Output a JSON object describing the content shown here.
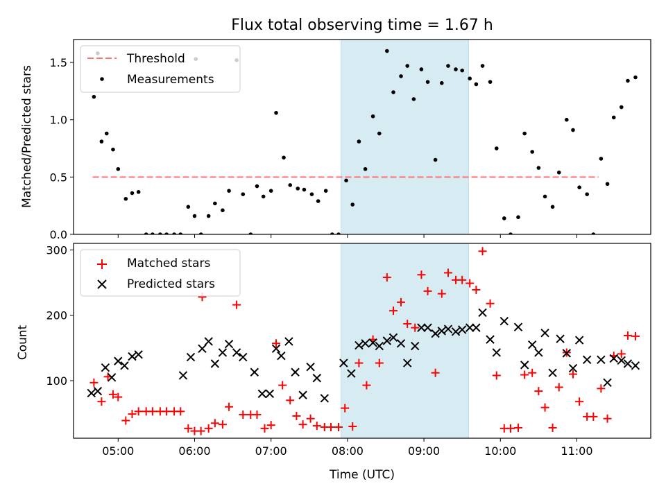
{
  "chart_data": [
    {
      "type": "scatter",
      "title": "Flux total observing time = 1.67 h",
      "xlabel": "",
      "ylabel": "Matched/Predicted stars",
      "xlim": [
        "04:25",
        "11:58"
      ],
      "ylim": [
        0,
        1.7
      ],
      "yticks": [
        0.0,
        0.5,
        1.0,
        1.5
      ],
      "ytick_labels": [
        "0.0",
        "0.5",
        "1.0",
        "1.5"
      ],
      "xticks": [
        "05:00",
        "06:00",
        "07:00",
        "08:00",
        "09:00",
        "10:00",
        "11:00"
      ],
      "xtick_labels": [],
      "shaded_span": {
        "start": "07:55",
        "end": "09:35",
        "color": "#add8e6",
        "opacity": 0.5
      },
      "legend_position": "top-left",
      "threshold": {
        "name": "Threshold",
        "value": 0.5,
        "x_start": "04:40",
        "x_end": "11:17",
        "color": "#ff7070",
        "style": "dashed"
      },
      "series": [
        {
          "name": "Measurements",
          "color": "#000000",
          "marker": "dot",
          "points": [
            [
              "04:41",
              1.2
            ],
            [
              "04:44",
              1.58
            ],
            [
              "04:47",
              0.81
            ],
            [
              "04:51",
              0.88
            ],
            [
              "04:56",
              0.74
            ],
            [
              "05:00",
              0.57
            ],
            [
              "05:06",
              0.31
            ],
            [
              "05:11",
              0.36
            ],
            [
              "05:16",
              0.37
            ],
            [
              "05:22",
              0.0
            ],
            [
              "05:27",
              0.0
            ],
            [
              "05:33",
              0.0
            ],
            [
              "05:38",
              0.0
            ],
            [
              "05:44",
              0.0
            ],
            [
              "05:49",
              0.0
            ],
            [
              "05:55",
              0.24
            ],
            [
              "06:00",
              0.16
            ],
            [
              "06:05",
              0.0
            ],
            [
              "06:01",
              1.53
            ],
            [
              "06:11",
              0.16
            ],
            [
              "06:16",
              0.27
            ],
            [
              "06:22",
              0.21
            ],
            [
              "06:27",
              0.38
            ],
            [
              "06:33",
              1.52
            ],
            [
              "06:38",
              0.35
            ],
            [
              "06:44",
              0.0
            ],
            [
              "06:49",
              0.42
            ],
            [
              "06:54",
              0.33
            ],
            [
              "07:00",
              0.38
            ],
            [
              "07:04",
              1.06
            ],
            [
              "07:10",
              0.67
            ],
            [
              "07:15",
              0.43
            ],
            [
              "07:21",
              0.4
            ],
            [
              "07:26",
              0.39
            ],
            [
              "07:32",
              0.35
            ],
            [
              "07:37",
              0.29
            ],
            [
              "07:43",
              0.38
            ],
            [
              "07:48",
              0.0
            ],
            [
              "07:53",
              0.0
            ],
            [
              "07:59",
              0.47
            ],
            [
              "08:04",
              0.26
            ],
            [
              "08:09",
              0.81
            ],
            [
              "08:14",
              0.57
            ],
            [
              "08:20",
              1.03
            ],
            [
              "08:25",
              0.88
            ],
            [
              "08:31",
              1.6
            ],
            [
              "08:36",
              1.24
            ],
            [
              "08:42",
              1.38
            ],
            [
              "08:47",
              1.47
            ],
            [
              "08:52",
              1.18
            ],
            [
              "08:58",
              1.44
            ],
            [
              "09:03",
              1.33
            ],
            [
              "09:09",
              0.65
            ],
            [
              "09:14",
              1.32
            ],
            [
              "09:19",
              1.47
            ],
            [
              "09:25",
              1.44
            ],
            [
              "09:30",
              1.43
            ],
            [
              "09:36",
              1.36
            ],
            [
              "09:41",
              1.31
            ],
            [
              "09:46",
              1.47
            ],
            [
              "09:52",
              1.33
            ],
            [
              "09:57",
              0.75
            ],
            [
              "10:03",
              0.14
            ],
            [
              "10:08",
              0.0
            ],
            [
              "10:14",
              0.15
            ],
            [
              "10:19",
              0.88
            ],
            [
              "10:25",
              0.72
            ],
            [
              "10:30",
              0.58
            ],
            [
              "10:35",
              0.33
            ],
            [
              "10:41",
              0.24
            ],
            [
              "10:46",
              0.54
            ],
            [
              "10:52",
              1.0
            ],
            [
              "10:57",
              0.91
            ],
            [
              "11:02",
              0.41
            ],
            [
              "11:08",
              0.35
            ],
            [
              "11:13",
              0.0
            ],
            [
              "11:19",
              0.66
            ],
            [
              "11:24",
              0.44
            ],
            [
              "11:29",
              1.02
            ],
            [
              "11:35",
              1.11
            ],
            [
              "11:40",
              1.34
            ],
            [
              "11:46",
              1.37
            ]
          ]
        }
      ]
    },
    {
      "type": "scatter",
      "title": "",
      "xlabel": "Time (UTC)",
      "ylabel": "Count",
      "xlim": [
        "04:25",
        "11:58"
      ],
      "ylim": [
        12,
        310
      ],
      "yticks": [
        100,
        200,
        300
      ],
      "ytick_labels": [
        "100",
        "200",
        "300"
      ],
      "xticks": [
        "05:00",
        "06:00",
        "07:00",
        "08:00",
        "09:00",
        "10:00",
        "11:00"
      ],
      "xtick_labels": [
        "05:00",
        "06:00",
        "07:00",
        "08:00",
        "09:00",
        "10:00",
        "11:00"
      ],
      "shaded_span": {
        "start": "07:55",
        "end": "09:35",
        "color": "#add8e6",
        "opacity": 0.5
      },
      "legend_position": "top-left",
      "series": [
        {
          "name": "Matched stars",
          "color": "#ff0000",
          "marker": "plus",
          "points": [
            [
              "04:41",
              97
            ],
            [
              "04:47",
              68
            ],
            [
              "04:52",
              106
            ],
            [
              "04:56",
              79
            ],
            [
              "05:00",
              75
            ],
            [
              "05:06",
              39
            ],
            [
              "05:11",
              49
            ],
            [
              "05:16",
              53
            ],
            [
              "05:22",
              53
            ],
            [
              "05:27",
              53
            ],
            [
              "05:33",
              53
            ],
            [
              "05:38",
              53
            ],
            [
              "05:44",
              53
            ],
            [
              "05:49",
              53
            ],
            [
              "05:55",
              27
            ],
            [
              "06:00",
              23
            ],
            [
              "06:05",
              23
            ],
            [
              "06:06",
              228
            ],
            [
              "06:11",
              27
            ],
            [
              "06:16",
              35
            ],
            [
              "06:22",
              33
            ],
            [
              "06:27",
              60
            ],
            [
              "06:33",
              216
            ],
            [
              "06:38",
              48
            ],
            [
              "06:44",
              48
            ],
            [
              "06:49",
              48
            ],
            [
              "06:55",
              27
            ],
            [
              "07:00",
              32
            ],
            [
              "07:04",
              157
            ],
            [
              "07:09",
              93
            ],
            [
              "07:15",
              70
            ],
            [
              "07:20",
              46
            ],
            [
              "07:25",
              33
            ],
            [
              "07:31",
              42
            ],
            [
              "07:36",
              31
            ],
            [
              "07:42",
              29
            ],
            [
              "07:47",
              29
            ],
            [
              "07:53",
              29
            ],
            [
              "07:58",
              58
            ],
            [
              "08:04",
              30
            ],
            [
              "08:09",
              127
            ],
            [
              "08:15",
              93
            ],
            [
              "08:20",
              163
            ],
            [
              "08:25",
              127
            ],
            [
              "08:31",
              258
            ],
            [
              "08:36",
              207
            ],
            [
              "08:42",
              220
            ],
            [
              "08:47",
              187
            ],
            [
              "08:53",
              181
            ],
            [
              "08:58",
              262
            ],
            [
              "09:03",
              237
            ],
            [
              "09:09",
              112
            ],
            [
              "09:14",
              233
            ],
            [
              "09:19",
              265
            ],
            [
              "09:25",
              254
            ],
            [
              "09:30",
              254
            ],
            [
              "09:36",
              249
            ],
            [
              "09:41",
              239
            ],
            [
              "09:46",
              298
            ],
            [
              "09:52",
              218
            ],
            [
              "09:57",
              108
            ],
            [
              "10:03",
              27
            ],
            [
              "10:08",
              27
            ],
            [
              "10:14",
              28
            ],
            [
              "10:19",
              109
            ],
            [
              "10:25",
              112
            ],
            [
              "10:30",
              84
            ],
            [
              "10:35",
              59
            ],
            [
              "10:41",
              28
            ],
            [
              "10:46",
              90
            ],
            [
              "10:52",
              143
            ],
            [
              "10:57",
              110
            ],
            [
              "11:02",
              68
            ],
            [
              "11:08",
              45
            ],
            [
              "11:13",
              45
            ],
            [
              "11:19",
              88
            ],
            [
              "11:24",
              42
            ],
            [
              "11:29",
              138
            ],
            [
              "11:35",
              141
            ],
            [
              "11:40",
              169
            ],
            [
              "11:46",
              168
            ]
          ]
        },
        {
          "name": "Predicted stars",
          "color": "#000000",
          "marker": "x",
          "points": [
            [
              "04:39",
              81
            ],
            [
              "04:44",
              84
            ],
            [
              "04:50",
              120
            ],
            [
              "04:55",
              105
            ],
            [
              "05:00",
              130
            ],
            [
              "05:05",
              123
            ],
            [
              "05:11",
              137
            ],
            [
              "05:16",
              140
            ],
            [
              "05:51",
              108
            ],
            [
              "05:57",
              136
            ],
            [
              "06:06",
              149
            ],
            [
              "06:11",
              160
            ],
            [
              "06:16",
              126
            ],
            [
              "06:22",
              143
            ],
            [
              "06:27",
              156
            ],
            [
              "06:33",
              143
            ],
            [
              "06:38",
              136
            ],
            [
              "06:47",
              113
            ],
            [
              "06:53",
              80
            ],
            [
              "06:59",
              80
            ],
            [
              "07:04",
              149
            ],
            [
              "07:08",
              138
            ],
            [
              "07:14",
              160
            ],
            [
              "07:19",
              113
            ],
            [
              "07:25",
              78
            ],
            [
              "07:31",
              121
            ],
            [
              "07:36",
              104
            ],
            [
              "07:42",
              73
            ],
            [
              "07:57",
              127
            ],
            [
              "08:03",
              111
            ],
            [
              "08:09",
              154
            ],
            [
              "08:14",
              157
            ],
            [
              "08:20",
              158
            ],
            [
              "08:25",
              153
            ],
            [
              "08:31",
              161
            ],
            [
              "08:36",
              166
            ],
            [
              "08:42",
              157
            ],
            [
              "08:47",
              127
            ],
            [
              "08:53",
              153
            ],
            [
              "08:58",
              181
            ],
            [
              "09:03",
              181
            ],
            [
              "09:09",
              172
            ],
            [
              "09:14",
              176
            ],
            [
              "09:19",
              179
            ],
            [
              "09:25",
              175
            ],
            [
              "09:30",
              178
            ],
            [
              "09:36",
              181
            ],
            [
              "09:41",
              181
            ],
            [
              "09:46",
              204
            ],
            [
              "09:52",
              163
            ],
            [
              "09:57",
              143
            ],
            [
              "10:03",
              191
            ],
            [
              "10:14",
              182
            ],
            [
              "10:19",
              124
            ],
            [
              "10:25",
              155
            ],
            [
              "10:30",
              143
            ],
            [
              "10:35",
              173
            ],
            [
              "10:41",
              112
            ],
            [
              "10:47",
              164
            ],
            [
              "10:52",
              142
            ],
            [
              "10:57",
              119
            ],
            [
              "11:02",
              162
            ],
            [
              "11:08",
              132
            ],
            [
              "11:19",
              132
            ],
            [
              "11:24",
              97
            ],
            [
              "11:29",
              134
            ],
            [
              "11:35",
              131
            ],
            [
              "11:40",
              126
            ],
            [
              "11:46",
              123
            ]
          ]
        }
      ]
    }
  ]
}
